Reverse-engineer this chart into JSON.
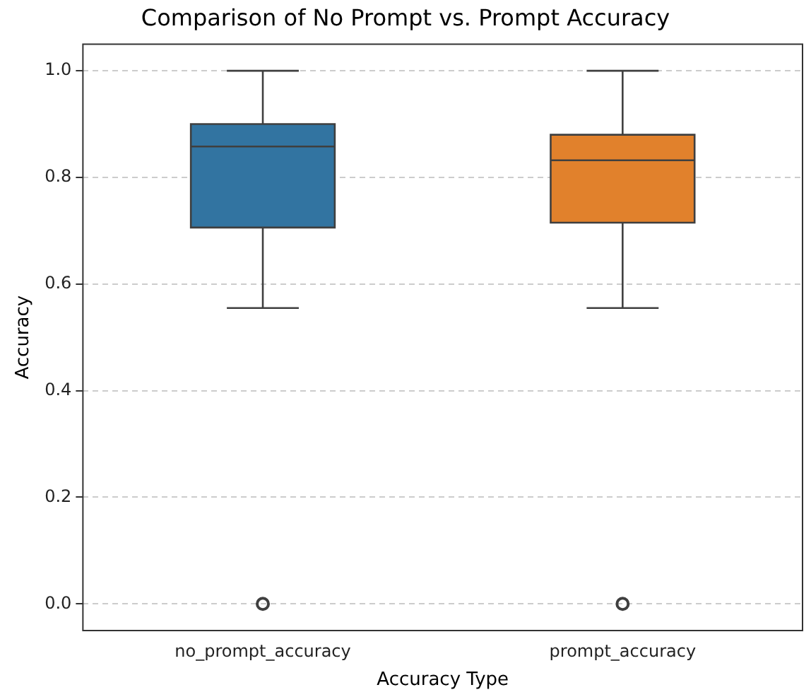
{
  "chart_data": {
    "type": "box",
    "title": "Comparison of No Prompt vs. Prompt Accuracy",
    "xlabel": "Accuracy Type",
    "ylabel": "Accuracy",
    "categories": [
      "no_prompt_accuracy",
      "prompt_accuracy"
    ],
    "boxes": [
      {
        "low": 0.555,
        "q1": 0.706,
        "median": 0.858,
        "q3": 0.9,
        "high": 1.0,
        "outliers": [
          0
        ]
      },
      {
        "low": 0.555,
        "q1": 0.715,
        "median": 0.832,
        "q3": 0.88,
        "high": 1.0,
        "outliers": [
          0
        ]
      }
    ],
    "colors": [
      "#3274a1",
      "#e1812c"
    ],
    "ylim": [
      -0.05,
      1.05
    ],
    "yticks": [
      {
        "value": 0,
        "label": "0.0"
      },
      {
        "value": 0.2,
        "label": "0.2"
      },
      {
        "value": 0.4,
        "label": "0.4"
      },
      {
        "value": 0.6,
        "label": "0.6"
      },
      {
        "value": 0.8,
        "label": "0.8"
      },
      {
        "value": 1,
        "label": "1.0"
      }
    ],
    "grid": "y",
    "marker": "circle"
  }
}
